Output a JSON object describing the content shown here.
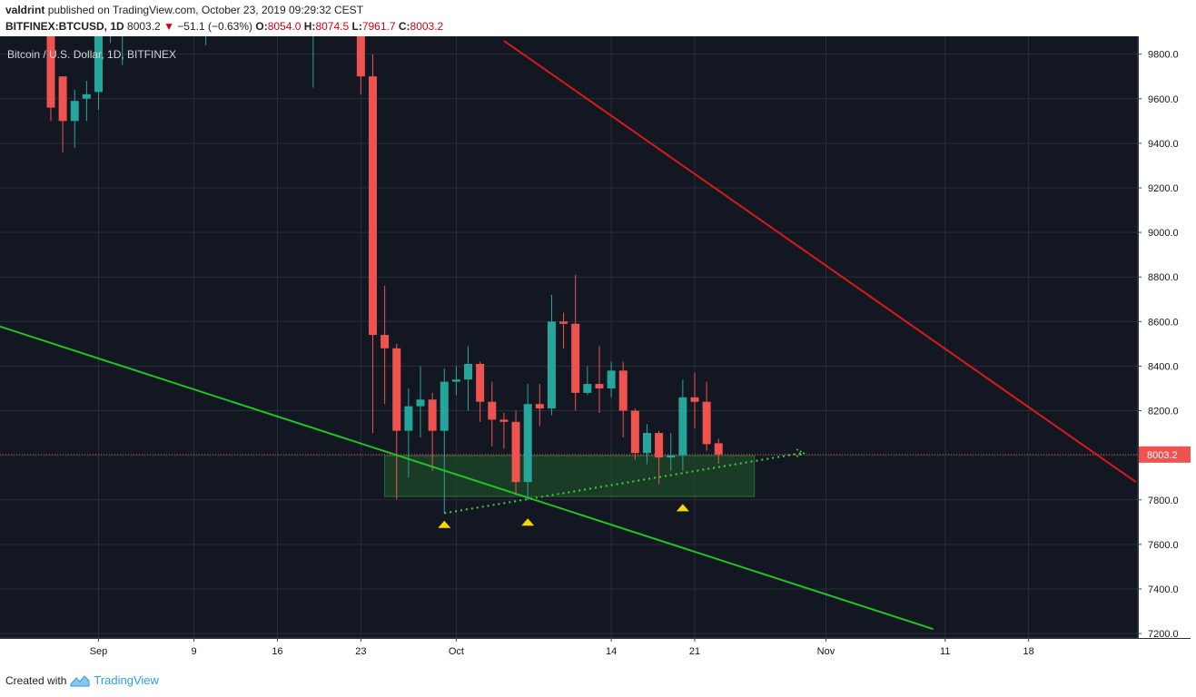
{
  "header": {
    "user": "valdrint",
    "published_text": "published on TradingView.com, October 23, 2019 09:29:32 CEST",
    "symbol": "BITFINEX:BTCUSD, 1D",
    "last": "8003.2",
    "down_arrow": "▼",
    "change": "−51.1 (−0.63%)",
    "o_label": "O:",
    "o": "8054.0",
    "h_label": "H:",
    "h": "8074.5",
    "l_label": "L:",
    "l": "7961.7",
    "c_label": "C:",
    "c": "8003.2"
  },
  "footer": {
    "created_with": "Created with",
    "brand": "TradingView"
  },
  "chart_data": {
    "type": "candlestick",
    "title": "Bitcoin / U.S. Dollar, 1D, BITFINEX",
    "ylim": [
      7180,
      9880
    ],
    "y_ticks": [
      9800,
      9600,
      9400,
      9200,
      9000,
      8800,
      8600,
      8400,
      8200,
      8000,
      7800,
      7600,
      7400,
      7200
    ],
    "y_tick_labels": [
      "9800.0",
      "9600.0",
      "9400.0",
      "9200.0",
      "9000.0",
      "8800.0",
      "8600.0",
      "8400.0",
      "8200.0",
      "8000.0",
      "7800.0",
      "7600.0",
      "7400.0",
      "7200.0"
    ],
    "x_ticks": [
      {
        "date": "2019-09-01",
        "label": "Sep"
      },
      {
        "date": "2019-09-09",
        "label": "9"
      },
      {
        "date": "2019-09-16",
        "label": "16"
      },
      {
        "date": "2019-09-23",
        "label": "23"
      },
      {
        "date": "2019-10-01",
        "label": "Oct"
      },
      {
        "date": "2019-10-14",
        "label": "14"
      },
      {
        "date": "2019-10-21",
        "label": "21"
      },
      {
        "date": "2019-11-01",
        "label": "Nov"
      },
      {
        "date": "2019-11-11",
        "label": "11"
      },
      {
        "date": "2019-11-18",
        "label": "18"
      }
    ],
    "last_price": 8003.2,
    "last_price_label": "8003.2",
    "colors": {
      "background": "#131722",
      "grid": "#2a2e39",
      "up": "#26a69a",
      "down": "#ef5350",
      "downtrend_line": "#d91a1a",
      "support_line": "#22c322",
      "zone_fill": "#1e4a28",
      "zone_border": "#2f6b37",
      "dotted_trendline": "#39d639",
      "markers": "#f5d800",
      "price_line": "#ef5350"
    },
    "candles": [
      {
        "date": "2019-08-28",
        "o": 9950,
        "h": 9950,
        "l": 9500,
        "c": 9560
      },
      {
        "date": "2019-08-29",
        "o": 9700,
        "h": 9700,
        "l": 9360,
        "c": 9500
      },
      {
        "date": "2019-08-30",
        "o": 9500,
        "h": 9640,
        "l": 9380,
        "c": 9590
      },
      {
        "date": "2019-08-31",
        "o": 9600,
        "h": 9680,
        "l": 9500,
        "c": 9620
      },
      {
        "date": "2019-09-01",
        "o": 9630,
        "h": 9900,
        "l": 9550,
        "c": 9900
      },
      {
        "date": "2019-09-02",
        "o": 9900,
        "h": 9950,
        "l": 9850,
        "c": 9920
      },
      {
        "date": "2019-09-03",
        "o": 9920,
        "h": 9990,
        "l": 9750,
        "c": 9960
      },
      {
        "date": "2019-09-10",
        "o": 9980,
        "h": 9990,
        "l": 9840,
        "c": 9990
      },
      {
        "date": "2019-09-19",
        "o": 9970,
        "h": 9990,
        "l": 9650,
        "c": 9980
      },
      {
        "date": "2019-09-22",
        "o": 9980,
        "h": 9990,
        "l": 9920,
        "c": 9990
      },
      {
        "date": "2019-09-23",
        "o": 9950,
        "h": 9970,
        "l": 9620,
        "c": 9700
      },
      {
        "date": "2019-09-24",
        "o": 9700,
        "h": 9800,
        "l": 8100,
        "c": 8540
      },
      {
        "date": "2019-09-25",
        "o": 8540,
        "h": 8760,
        "l": 8230,
        "c": 8480
      },
      {
        "date": "2019-09-26",
        "o": 8480,
        "h": 8500,
        "l": 7800,
        "c": 8110
      },
      {
        "date": "2019-09-27",
        "o": 8110,
        "h": 8300,
        "l": 7900,
        "c": 8220
      },
      {
        "date": "2019-09-28",
        "o": 8220,
        "h": 8400,
        "l": 8080,
        "c": 8250
      },
      {
        "date": "2019-09-29",
        "o": 8250,
        "h": 8280,
        "l": 7930,
        "c": 8110
      },
      {
        "date": "2019-09-30",
        "o": 8110,
        "h": 8390,
        "l": 7740,
        "c": 8330
      },
      {
        "date": "2019-10-01",
        "o": 8330,
        "h": 8400,
        "l": 8270,
        "c": 8340
      },
      {
        "date": "2019-10-02",
        "o": 8340,
        "h": 8490,
        "l": 8200,
        "c": 8410
      },
      {
        "date": "2019-10-03",
        "o": 8410,
        "h": 8420,
        "l": 8150,
        "c": 8240
      },
      {
        "date": "2019-10-04",
        "o": 8240,
        "h": 8330,
        "l": 8040,
        "c": 8160
      },
      {
        "date": "2019-10-05",
        "o": 8160,
        "h": 8190,
        "l": 8030,
        "c": 8150
      },
      {
        "date": "2019-10-06",
        "o": 8150,
        "h": 8200,
        "l": 7820,
        "c": 7880
      },
      {
        "date": "2019-10-07",
        "o": 7880,
        "h": 8320,
        "l": 7800,
        "c": 8230
      },
      {
        "date": "2019-10-08",
        "o": 8230,
        "h": 8320,
        "l": 8130,
        "c": 8210
      },
      {
        "date": "2019-10-09",
        "o": 8210,
        "h": 8720,
        "l": 8180,
        "c": 8600
      },
      {
        "date": "2019-10-10",
        "o": 8600,
        "h": 8640,
        "l": 8480,
        "c": 8590
      },
      {
        "date": "2019-10-11",
        "o": 8590,
        "h": 8810,
        "l": 8200,
        "c": 8280
      },
      {
        "date": "2019-10-12",
        "o": 8280,
        "h": 8400,
        "l": 8270,
        "c": 8320
      },
      {
        "date": "2019-10-13",
        "o": 8320,
        "h": 8490,
        "l": 8190,
        "c": 8300
      },
      {
        "date": "2019-10-14",
        "o": 8300,
        "h": 8420,
        "l": 8260,
        "c": 8380
      },
      {
        "date": "2019-10-15",
        "o": 8380,
        "h": 8420,
        "l": 8080,
        "c": 8200
      },
      {
        "date": "2019-10-16",
        "o": 8200,
        "h": 8210,
        "l": 7980,
        "c": 8010
      },
      {
        "date": "2019-10-17",
        "o": 8010,
        "h": 8140,
        "l": 7960,
        "c": 8100
      },
      {
        "date": "2019-10-18",
        "o": 8100,
        "h": 8110,
        "l": 7870,
        "c": 7990
      },
      {
        "date": "2019-10-19",
        "o": 7990,
        "h": 8100,
        "l": 7930,
        "c": 8000
      },
      {
        "date": "2019-10-20",
        "o": 8000,
        "h": 8340,
        "l": 7930,
        "c": 8260
      },
      {
        "date": "2019-10-21",
        "o": 8260,
        "h": 8370,
        "l": 8120,
        "c": 8240
      },
      {
        "date": "2019-10-22",
        "o": 8240,
        "h": 8330,
        "l": 8020,
        "c": 8050
      },
      {
        "date": "2019-10-23",
        "o": 8054.0,
        "h": 8074.5,
        "l": 7961.7,
        "c": 8003.2
      }
    ],
    "drawings": {
      "downtrend_line": {
        "from": {
          "date": "2019-10-05",
          "price": 9860
        },
        "to": {
          "date": "2019-11-27",
          "price": 7880
        }
      },
      "support_line": {
        "from": {
          "date": "2019-08-19",
          "price": 8660
        },
        "to": {
          "date": "2019-11-10",
          "price": 7220
        }
      },
      "dotted_trendline": {
        "from": {
          "date": "2019-09-30",
          "price": 7740
        },
        "to": {
          "date": "2019-10-30",
          "price": 8010
        }
      },
      "support_zone": {
        "from_date": "2019-09-25",
        "to_date": "2019-10-26",
        "low": 7815,
        "high": 7998
      },
      "triangle_markers": [
        {
          "date": "2019-09-30",
          "price": 7690
        },
        {
          "date": "2019-10-07",
          "price": 7700
        },
        {
          "date": "2019-10-20",
          "price": 7765
        }
      ]
    }
  }
}
